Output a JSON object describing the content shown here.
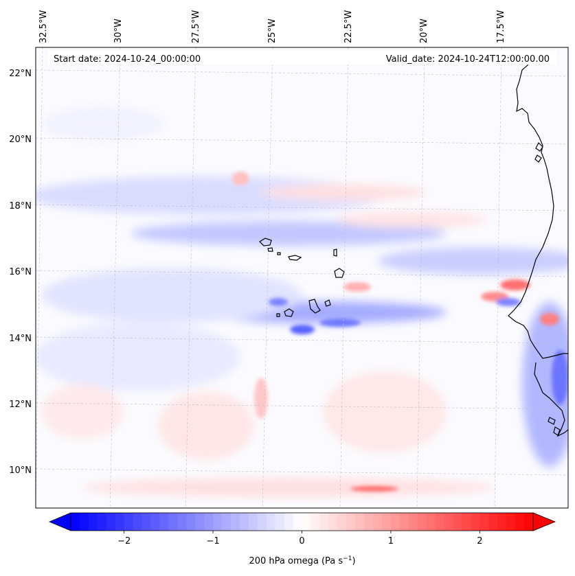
{
  "map": {
    "start_date_text": "Start date: 2024-10-24_00:00:00",
    "valid_date_text": "Valid_date: 2024-10-24T12:00:00.00",
    "top_ticks": [
      "32.5°W",
      "30°W",
      "27.5°W",
      "25°W",
      "22.5°W",
      "20°W",
      "17.5°W"
    ],
    "left_ticks": [
      "22°N",
      "20°N",
      "18°N",
      "16°N",
      "14°N",
      "12°N",
      "10°N"
    ],
    "colors": {
      "negative": "#0000ff",
      "zero": "#ffffff",
      "positive": "#ff0000"
    }
  },
  "colorbar": {
    "ticks": [
      "−2",
      "−1",
      "0",
      "1",
      "2"
    ],
    "tick_values": [
      -2,
      -1,
      0,
      1,
      2
    ],
    "range": [
      -2.6,
      2.6
    ],
    "label_prefix": "200 hPa omega (Pa s",
    "label_exp": "−1",
    "label_suffix": ")"
  }
}
